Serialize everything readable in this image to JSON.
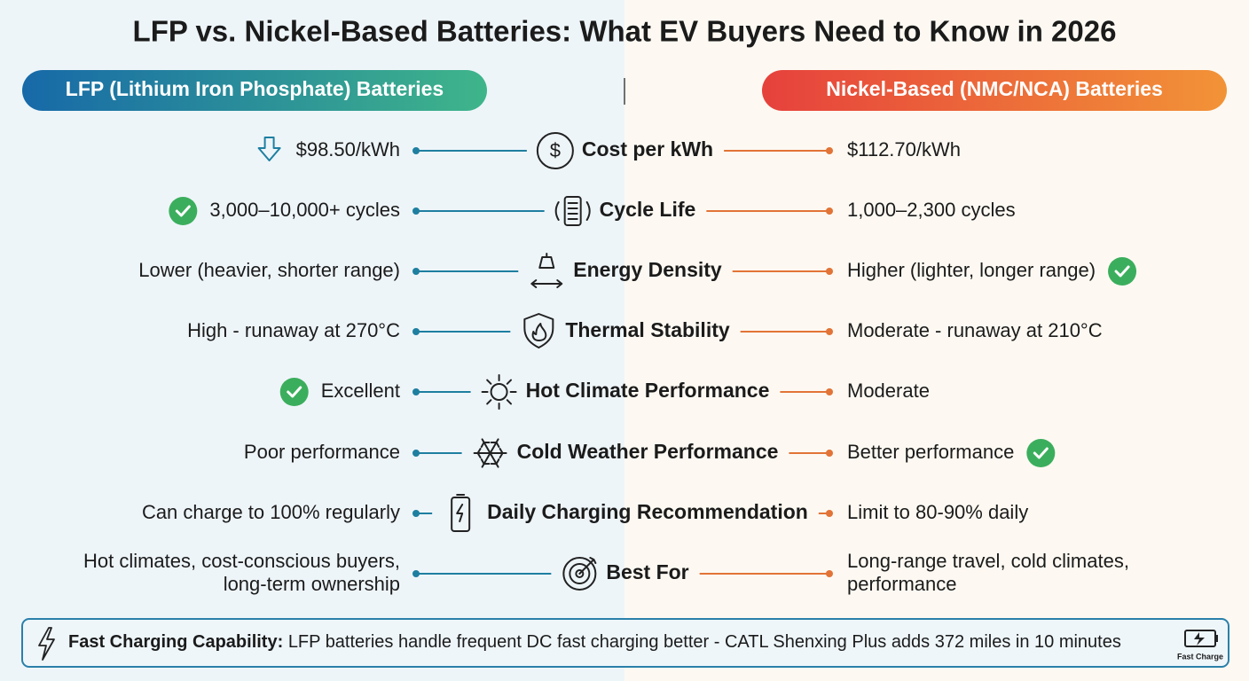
{
  "title": "LFP vs. Nickel-Based Batteries: What EV Buyers Need to Know in 2026",
  "left_header": "LFP (Lithium Iron Phosphate) Batteries",
  "right_header": "Nickel-Based (NMC/NCA) Batteries",
  "rows": [
    {
      "label": "Cost per kWh",
      "left": [
        "$98.50/kWh"
      ],
      "right": [
        "$112.70/kWh"
      ]
    },
    {
      "label": "Cycle Life",
      "left": [
        "3,000–10,000+ cycles"
      ],
      "right": [
        "1,000–2,300 cycles"
      ]
    },
    {
      "label": "Energy Density",
      "left": [
        "Lower (heavier, shorter range)"
      ],
      "right": [
        "Higher (lighter, longer range)"
      ]
    },
    {
      "label": "Thermal Stability",
      "left": [
        "High - runaway at 270°C"
      ],
      "right": [
        "Moderate - runaway at 210°C"
      ]
    },
    {
      "label": "Hot Climate Performance",
      "left": [
        "Excellent"
      ],
      "right": [
        "Moderate"
      ]
    },
    {
      "label": "Cold Weather Performance",
      "left": [
        "Poor performance"
      ],
      "right": [
        "Better performance"
      ]
    },
    {
      "label": "Daily Charging Recommendation",
      "left": [
        "Can charge to 100% regularly"
      ],
      "right": [
        "Limit to 80-90% daily"
      ]
    },
    {
      "label": "Best For",
      "left": [
        "Hot climates, cost-conscious buyers,",
        "long-term ownership"
      ],
      "right": [
        "Long-range travel, cold climates,",
        "performance"
      ]
    }
  ],
  "footer": {
    "label": "Fast Charging Capability:",
    "text": "LFP batteries handle frequent DC fast charging better - CATL Shenxing Plus adds 372 miles in 10 minutes",
    "badge": "Fast Charge"
  }
}
